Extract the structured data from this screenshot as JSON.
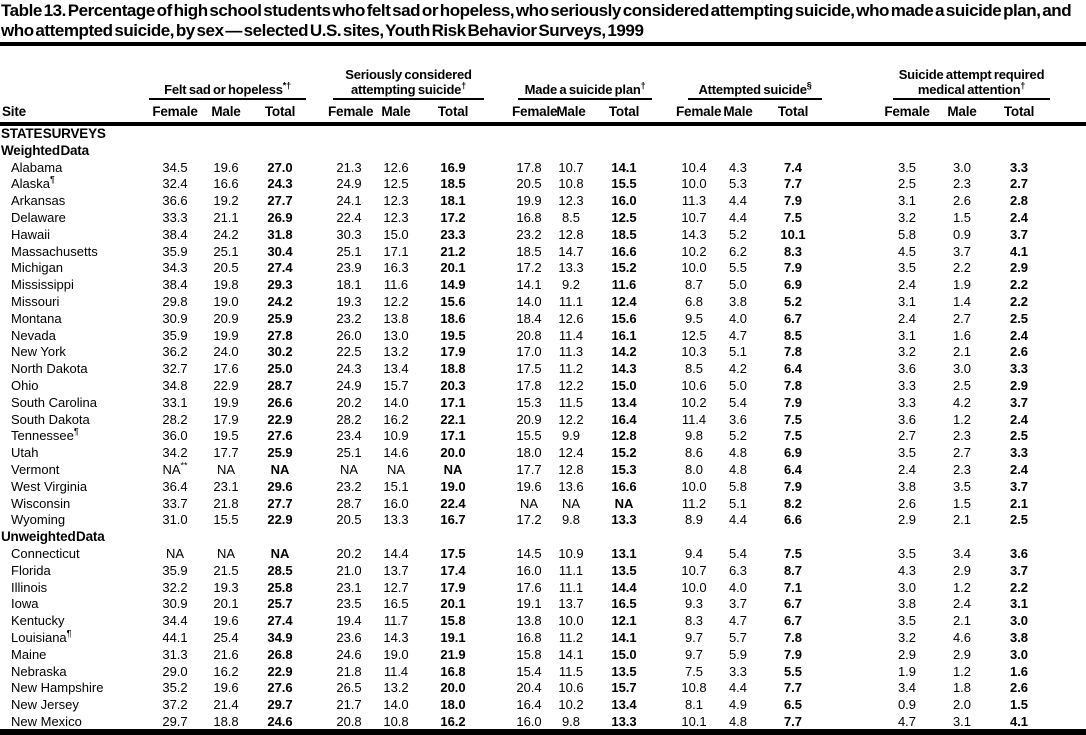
{
  "title": "Table 13. Percentage of high school students who felt sad or hopeless, who seriously considered attempting suicide, who made a suicide plan, and who attempted suicide, by sex — selected U.S. sites, Youth Risk Behavior Surveys, 1999",
  "colors": {
    "text": "#000000",
    "background": "#ffffff",
    "rule": "#000000"
  },
  "columns": {
    "site": "Site",
    "groups": [
      {
        "label": "Felt sad or hopeless",
        "sup": "*†"
      },
      {
        "label": "Seriously considered attempting suicide",
        "sup": "†"
      },
      {
        "label": "Made a suicide plan",
        "sup": "†"
      },
      {
        "label": "Attempted suicide",
        "sup": "§"
      },
      {
        "label": "Suicide attempt required medical attention",
        "sup": "†"
      }
    ],
    "sub": [
      "Female",
      "Male",
      "Total"
    ]
  },
  "sections": [
    {
      "headings": [
        "STATE SURVEYS",
        "Weighted Data"
      ],
      "rows": [
        {
          "site": "Alabama",
          "sup": "",
          "values": [
            "34.5",
            "19.6",
            "27.0",
            "21.3",
            "12.6",
            "16.9",
            "17.8",
            "10.7",
            "14.1",
            "10.4",
            "4.3",
            "7.4",
            "3.5",
            "3.0",
            "3.3"
          ]
        },
        {
          "site": "Alaska",
          "sup": "¶",
          "values": [
            "32.4",
            "16.6",
            "24.3",
            "24.9",
            "12.5",
            "18.5",
            "20.5",
            "10.8",
            "15.5",
            "10.0",
            "5.3",
            "7.7",
            "2.5",
            "2.3",
            "2.7"
          ]
        },
        {
          "site": "Arkansas",
          "sup": "",
          "values": [
            "36.6",
            "19.2",
            "27.7",
            "24.1",
            "12.3",
            "18.1",
            "19.9",
            "12.3",
            "16.0",
            "11.3",
            "4.4",
            "7.9",
            "3.1",
            "2.6",
            "2.8"
          ]
        },
        {
          "site": "Delaware",
          "sup": "",
          "values": [
            "33.3",
            "21.1",
            "26.9",
            "22.4",
            "12.3",
            "17.2",
            "16.8",
            "8.5",
            "12.5",
            "10.7",
            "4.4",
            "7.5",
            "3.2",
            "1.5",
            "2.4"
          ]
        },
        {
          "site": "Hawaii",
          "sup": "",
          "values": [
            "38.4",
            "24.2",
            "31.8",
            "30.3",
            "15.0",
            "23.3",
            "23.2",
            "12.8",
            "18.5",
            "14.3",
            "5.2",
            "10.1",
            "5.8",
            "0.9",
            "3.7"
          ]
        },
        {
          "site": "Massachusetts",
          "sup": "",
          "values": [
            "35.9",
            "25.1",
            "30.4",
            "25.1",
            "17.1",
            "21.2",
            "18.5",
            "14.7",
            "16.6",
            "10.2",
            "6.2",
            "8.3",
            "4.5",
            "3.7",
            "4.1"
          ]
        },
        {
          "site": "Michigan",
          "sup": "",
          "values": [
            "34.3",
            "20.5",
            "27.4",
            "23.9",
            "16.3",
            "20.1",
            "17.2",
            "13.3",
            "15.2",
            "10.0",
            "5.5",
            "7.9",
            "3.5",
            "2.2",
            "2.9"
          ]
        },
        {
          "site": "Mississippi",
          "sup": "",
          "values": [
            "38.4",
            "19.8",
            "29.3",
            "18.1",
            "11.6",
            "14.9",
            "14.1",
            "9.2",
            "11.6",
            "8.7",
            "5.0",
            "6.9",
            "2.4",
            "1.9",
            "2.2"
          ]
        },
        {
          "site": "Missouri",
          "sup": "",
          "values": [
            "29.8",
            "19.0",
            "24.2",
            "19.3",
            "12.2",
            "15.6",
            "14.0",
            "11.1",
            "12.4",
            "6.8",
            "3.8",
            "5.2",
            "3.1",
            "1.4",
            "2.2"
          ]
        },
        {
          "site": "Montana",
          "sup": "",
          "values": [
            "30.9",
            "20.9",
            "25.9",
            "23.2",
            "13.8",
            "18.6",
            "18.4",
            "12.6",
            "15.6",
            "9.5",
            "4.0",
            "6.7",
            "2.4",
            "2.7",
            "2.5"
          ]
        },
        {
          "site": "Nevada",
          "sup": "",
          "values": [
            "35.9",
            "19.9",
            "27.8",
            "26.0",
            "13.0",
            "19.5",
            "20.8",
            "11.4",
            "16.1",
            "12.5",
            "4.7",
            "8.5",
            "3.1",
            "1.6",
            "2.4"
          ]
        },
        {
          "site": "New York",
          "sup": "",
          "values": [
            "36.2",
            "24.0",
            "30.2",
            "22.5",
            "13.2",
            "17.9",
            "17.0",
            "11.3",
            "14.2",
            "10.3",
            "5.1",
            "7.8",
            "3.2",
            "2.1",
            "2.6"
          ]
        },
        {
          "site": "North Dakota",
          "sup": "",
          "values": [
            "32.7",
            "17.6",
            "25.0",
            "24.3",
            "13.4",
            "18.8",
            "17.5",
            "11.2",
            "14.3",
            "8.5",
            "4.2",
            "6.4",
            "3.6",
            "3.0",
            "3.3"
          ]
        },
        {
          "site": "Ohio",
          "sup": "",
          "values": [
            "34.8",
            "22.9",
            "28.7",
            "24.9",
            "15.7",
            "20.3",
            "17.8",
            "12.2",
            "15.0",
            "10.6",
            "5.0",
            "7.8",
            "3.3",
            "2.5",
            "2.9"
          ]
        },
        {
          "site": "South Carolina",
          "sup": "",
          "values": [
            "33.1",
            "19.9",
            "26.6",
            "20.2",
            "14.0",
            "17.1",
            "15.3",
            "11.5",
            "13.4",
            "10.2",
            "5.4",
            "7.9",
            "3.3",
            "4.2",
            "3.7"
          ]
        },
        {
          "site": "South Dakota",
          "sup": "",
          "values": [
            "28.2",
            "17.9",
            "22.9",
            "28.2",
            "16.2",
            "22.1",
            "20.9",
            "12.2",
            "16.4",
            "11.4",
            "3.6",
            "7.5",
            "3.6",
            "1.2",
            "2.4"
          ]
        },
        {
          "site": "Tennessee",
          "sup": "¶",
          "values": [
            "36.0",
            "19.5",
            "27.6",
            "23.4",
            "10.9",
            "17.1",
            "15.5",
            "9.9",
            "12.8",
            "9.8",
            "5.2",
            "7.5",
            "2.7",
            "2.3",
            "2.5"
          ]
        },
        {
          "site": "Utah",
          "sup": "",
          "values": [
            "34.2",
            "17.7",
            "25.9",
            "25.1",
            "14.6",
            "20.0",
            "18.0",
            "12.4",
            "15.2",
            "8.6",
            "4.8",
            "6.9",
            "3.5",
            "2.7",
            "3.3"
          ]
        },
        {
          "site": "Vermont",
          "sup": "",
          "values": [
            "NA**",
            "NA",
            "NA",
            "NA",
            "NA",
            "NA",
            "17.7",
            "12.8",
            "15.3",
            "8.0",
            "4.8",
            "6.4",
            "2.4",
            "2.3",
            "2.4"
          ]
        },
        {
          "site": "West Virginia",
          "sup": "",
          "values": [
            "36.4",
            "23.1",
            "29.6",
            "23.2",
            "15.1",
            "19.0",
            "19.6",
            "13.6",
            "16.6",
            "10.0",
            "5.8",
            "7.9",
            "3.8",
            "3.5",
            "3.7"
          ]
        },
        {
          "site": "Wisconsin",
          "sup": "",
          "values": [
            "33.7",
            "21.8",
            "27.7",
            "28.7",
            "16.0",
            "22.4",
            "NA",
            "NA",
            "NA",
            "11.2",
            "5.1",
            "8.2",
            "2.6",
            "1.5",
            "2.1"
          ]
        },
        {
          "site": "Wyoming",
          "sup": "",
          "values": [
            "31.0",
            "15.5",
            "22.9",
            "20.5",
            "13.3",
            "16.7",
            "17.2",
            "9.8",
            "13.3",
            "8.9",
            "4.4",
            "6.6",
            "2.9",
            "2.1",
            "2.5"
          ]
        }
      ]
    },
    {
      "headings": [
        "Unweighted Data"
      ],
      "rows": [
        {
          "site": "Connecticut",
          "sup": "",
          "values": [
            "NA",
            "NA",
            "NA",
            "20.2",
            "14.4",
            "17.5",
            "14.5",
            "10.9",
            "13.1",
            "9.4",
            "5.4",
            "7.5",
            "3.5",
            "3.4",
            "3.6"
          ]
        },
        {
          "site": "Florida",
          "sup": "",
          "values": [
            "35.9",
            "21.5",
            "28.5",
            "21.0",
            "13.7",
            "17.4",
            "16.0",
            "11.1",
            "13.5",
            "10.7",
            "6.3",
            "8.7",
            "4.3",
            "2.9",
            "3.7"
          ]
        },
        {
          "site": "Illinois",
          "sup": "",
          "values": [
            "32.2",
            "19.3",
            "25.8",
            "23.1",
            "12.7",
            "17.9",
            "17.6",
            "11.1",
            "14.4",
            "10.0",
            "4.0",
            "7.1",
            "3.0",
            "1.2",
            "2.2"
          ]
        },
        {
          "site": "Iowa",
          "sup": "",
          "values": [
            "30.9",
            "20.1",
            "25.7",
            "23.5",
            "16.5",
            "20.1",
            "19.1",
            "13.7",
            "16.5",
            "9.3",
            "3.7",
            "6.7",
            "3.8",
            "2.4",
            "3.1"
          ]
        },
        {
          "site": "Kentucky",
          "sup": "",
          "values": [
            "34.4",
            "19.6",
            "27.4",
            "19.4",
            "11.7",
            "15.8",
            "13.8",
            "10.0",
            "12.1",
            "8.3",
            "4.7",
            "6.7",
            "3.5",
            "2.1",
            "3.0"
          ]
        },
        {
          "site": "Louisiana",
          "sup": "¶",
          "values": [
            "44.1",
            "25.4",
            "34.9",
            "23.6",
            "14.3",
            "19.1",
            "16.8",
            "11.2",
            "14.1",
            "9.7",
            "5.7",
            "7.8",
            "3.2",
            "4.6",
            "3.8"
          ]
        },
        {
          "site": "Maine",
          "sup": "",
          "values": [
            "31.3",
            "21.6",
            "26.8",
            "24.6",
            "19.0",
            "21.9",
            "15.8",
            "14.1",
            "15.0",
            "9.7",
            "5.9",
            "7.9",
            "2.9",
            "2.9",
            "3.0"
          ]
        },
        {
          "site": "Nebraska",
          "sup": "",
          "values": [
            "29.0",
            "16.2",
            "22.9",
            "21.8",
            "11.4",
            "16.8",
            "15.4",
            "11.5",
            "13.5",
            "7.5",
            "3.3",
            "5.5",
            "1.9",
            "1.2",
            "1.6"
          ]
        },
        {
          "site": "New Hampshire",
          "sup": "",
          "values": [
            "35.2",
            "19.6",
            "27.6",
            "26.5",
            "13.2",
            "20.0",
            "20.4",
            "10.6",
            "15.7",
            "10.8",
            "4.4",
            "7.7",
            "3.4",
            "1.8",
            "2.6"
          ]
        },
        {
          "site": "New Jersey",
          "sup": "",
          "values": [
            "37.2",
            "21.4",
            "29.7",
            "21.7",
            "14.0",
            "18.0",
            "16.4",
            "10.2",
            "13.4",
            "8.1",
            "4.9",
            "6.5",
            "0.9",
            "2.0",
            "1.5"
          ]
        },
        {
          "site": "New Mexico",
          "sup": "",
          "values": [
            "29.7",
            "18.8",
            "24.6",
            "20.8",
            "10.8",
            "16.2",
            "16.0",
            "9.8",
            "13.3",
            "10.1",
            "4.8",
            "7.7",
            "4.7",
            "3.1",
            "4.1"
          ]
        }
      ]
    }
  ]
}
